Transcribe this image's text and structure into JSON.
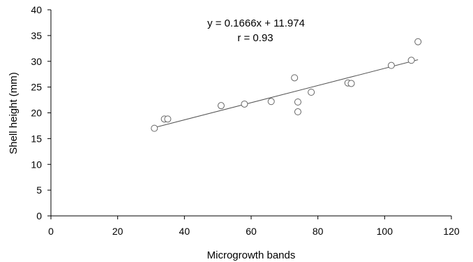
{
  "chart_data": {
    "type": "scatter",
    "xlabel": "Microgrowth bands",
    "ylabel": "Shell height (mm)",
    "xlim": [
      0,
      120
    ],
    "ylim": [
      0,
      40
    ],
    "xticks": [
      0,
      20,
      40,
      60,
      80,
      100,
      120
    ],
    "yticks": [
      0,
      5,
      10,
      15,
      20,
      25,
      30,
      35,
      40
    ],
    "grid": false,
    "points": [
      {
        "x": 31,
        "y": 17.0
      },
      {
        "x": 34,
        "y": 18.8
      },
      {
        "x": 35,
        "y": 18.8
      },
      {
        "x": 51,
        "y": 21.4
      },
      {
        "x": 58,
        "y": 21.7
      },
      {
        "x": 66,
        "y": 22.2
      },
      {
        "x": 73,
        "y": 26.8
      },
      {
        "x": 74,
        "y": 22.1
      },
      {
        "x": 74,
        "y": 20.2
      },
      {
        "x": 78,
        "y": 24.0
      },
      {
        "x": 89,
        "y": 25.8
      },
      {
        "x": 90,
        "y": 25.7
      },
      {
        "x": 102,
        "y": 29.2
      },
      {
        "x": 108,
        "y": 30.2
      },
      {
        "x": 110,
        "y": 33.8
      }
    ],
    "trendline": {
      "slope": 0.1666,
      "intercept": 11.974,
      "x_range": [
        31,
        110
      ]
    },
    "annotations": {
      "equation": "y = 0.1666x + 11.974",
      "r_value": "r = 0.93"
    },
    "colors": {
      "marker_stroke": "#666666",
      "trendline": "#555555",
      "axis": "#000000"
    }
  }
}
